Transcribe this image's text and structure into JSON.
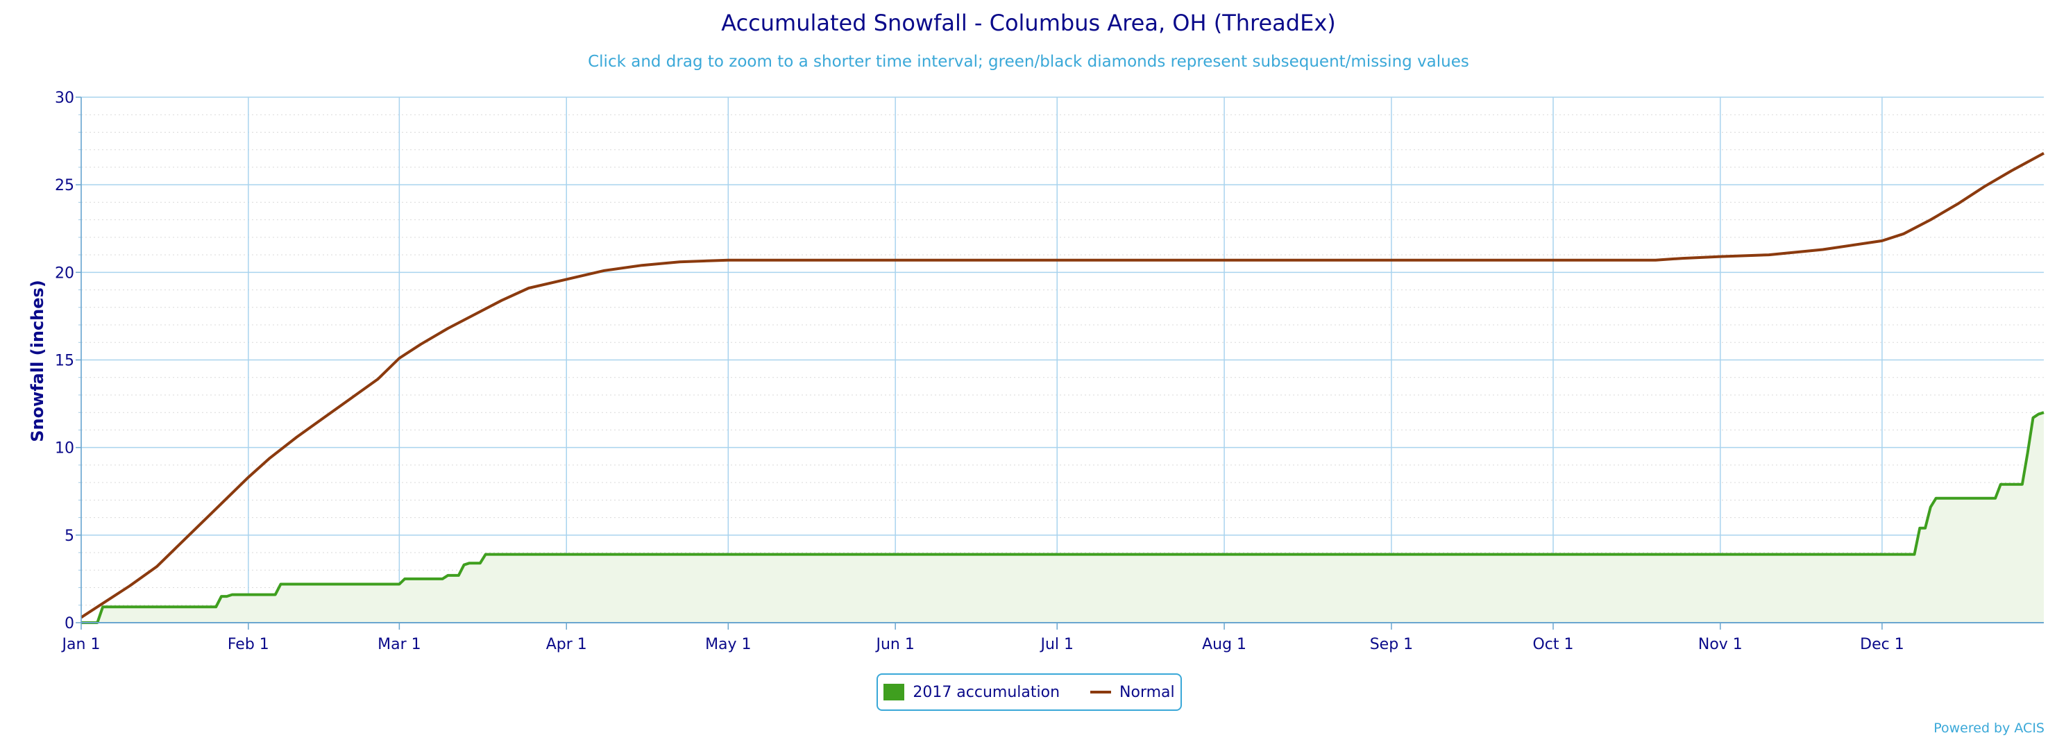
{
  "chart_data": {
    "type": "area",
    "title": "Accumulated Snowfall - Columbus Area, OH (ThreadEx)",
    "subtitle": "Click and drag to zoom to a shorter time interval; green/black diamonds represent subsequent/missing values",
    "ylabel": "Snowfall (inches)",
    "xlabel": "",
    "x_range": [
      "2017-01-01",
      "2017-12-31"
    ],
    "ylim": [
      0,
      30
    ],
    "y_ticks": [
      0,
      5,
      10,
      15,
      20,
      25,
      30
    ],
    "x_ticks": [
      {
        "date": "2017-01-01",
        "label": "Jan 1"
      },
      {
        "date": "2017-02-01",
        "label": "Feb 1"
      },
      {
        "date": "2017-03-01",
        "label": "Mar 1"
      },
      {
        "date": "2017-04-01",
        "label": "Apr 1"
      },
      {
        "date": "2017-05-01",
        "label": "May 1"
      },
      {
        "date": "2017-06-01",
        "label": "Jun 1"
      },
      {
        "date": "2017-07-01",
        "label": "Jul 1"
      },
      {
        "date": "2017-08-01",
        "label": "Aug 1"
      },
      {
        "date": "2017-09-01",
        "label": "Sep 1"
      },
      {
        "date": "2017-10-01",
        "label": "Oct 1"
      },
      {
        "date": "2017-11-01",
        "label": "Nov 1"
      },
      {
        "date": "2017-12-01",
        "label": "Dec 1"
      }
    ],
    "grid": true,
    "legend_position": "bottom-center",
    "series": [
      {
        "name": "2017 accumulation",
        "color": "#3f9f1f",
        "fill": "#eef6e8",
        "style": "step-area",
        "points": [
          [
            "2017-01-01",
            0
          ],
          [
            "2017-01-04",
            0
          ],
          [
            "2017-01-05",
            0.9
          ],
          [
            "2017-01-26",
            0.9
          ],
          [
            "2017-01-27",
            1.5
          ],
          [
            "2017-01-28",
            1.5
          ],
          [
            "2017-01-29",
            1.6
          ],
          [
            "2017-02-06",
            1.6
          ],
          [
            "2017-02-07",
            2.2
          ],
          [
            "2017-03-01",
            2.2
          ],
          [
            "2017-03-02",
            2.5
          ],
          [
            "2017-03-09",
            2.5
          ],
          [
            "2017-03-10",
            2.7
          ],
          [
            "2017-03-12",
            2.7
          ],
          [
            "2017-03-13",
            3.3
          ],
          [
            "2017-03-14",
            3.4
          ],
          [
            "2017-03-16",
            3.4
          ],
          [
            "2017-03-17",
            3.9
          ],
          [
            "2017-12-07",
            3.9
          ],
          [
            "2017-12-08",
            5.4
          ],
          [
            "2017-12-09",
            5.4
          ],
          [
            "2017-12-10",
            6.6
          ],
          [
            "2017-12-11",
            7.1
          ],
          [
            "2017-12-22",
            7.1
          ],
          [
            "2017-12-23",
            7.9
          ],
          [
            "2017-12-27",
            7.9
          ],
          [
            "2017-12-28",
            9.7
          ],
          [
            "2017-12-29",
            11.7
          ],
          [
            "2017-12-30",
            11.9
          ],
          [
            "2017-12-31",
            12.0
          ]
        ]
      },
      {
        "name": "Normal",
        "color": "#8b3a0e",
        "style": "line",
        "points": [
          [
            "2017-01-01",
            0.3
          ],
          [
            "2017-01-05",
            1.1
          ],
          [
            "2017-01-10",
            2.1
          ],
          [
            "2017-01-15",
            3.2
          ],
          [
            "2017-01-20",
            4.7
          ],
          [
            "2017-01-25",
            6.2
          ],
          [
            "2017-02-01",
            8.3
          ],
          [
            "2017-02-05",
            9.4
          ],
          [
            "2017-02-10",
            10.6
          ],
          [
            "2017-02-15",
            11.7
          ],
          [
            "2017-02-20",
            12.8
          ],
          [
            "2017-02-25",
            13.9
          ],
          [
            "2017-03-01",
            15.1
          ],
          [
            "2017-03-05",
            15.9
          ],
          [
            "2017-03-10",
            16.8
          ],
          [
            "2017-03-15",
            17.6
          ],
          [
            "2017-03-20",
            18.4
          ],
          [
            "2017-03-25",
            19.1
          ],
          [
            "2017-04-01",
            19.6
          ],
          [
            "2017-04-08",
            20.1
          ],
          [
            "2017-04-15",
            20.4
          ],
          [
            "2017-04-22",
            20.6
          ],
          [
            "2017-05-01",
            20.7
          ],
          [
            "2017-10-20",
            20.7
          ],
          [
            "2017-10-25",
            20.8
          ],
          [
            "2017-11-01",
            20.9
          ],
          [
            "2017-11-10",
            21.0
          ],
          [
            "2017-11-20",
            21.3
          ],
          [
            "2017-12-01",
            21.8
          ],
          [
            "2017-12-05",
            22.2
          ],
          [
            "2017-12-10",
            23.0
          ],
          [
            "2017-12-15",
            23.9
          ],
          [
            "2017-12-20",
            24.9
          ],
          [
            "2017-12-25",
            25.8
          ],
          [
            "2017-12-31",
            26.8
          ]
        ]
      }
    ]
  },
  "credit": "Powered by ACIS"
}
